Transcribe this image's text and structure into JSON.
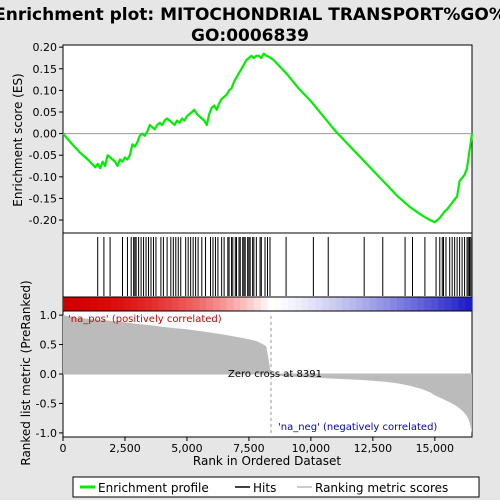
{
  "chart_data": {
    "type": "line",
    "title_line1": "Enrichment plot: MITOCHONDRIAL TRANSPORT%GO%",
    "title_line2": "GO:0006839",
    "top_panel": {
      "ylabel": "Enrichment score (ES)",
      "ylim": [
        -0.23,
        0.205
      ],
      "yticks": [
        "0.20",
        "0.15",
        "0.10",
        "0.05",
        "0.00",
        "-0.05",
        "-0.10",
        "-0.15",
        "-0.20"
      ],
      "ytick_values": [
        0.2,
        0.15,
        0.1,
        0.05,
        0.0,
        -0.05,
        -0.1,
        -0.15,
        -0.2
      ],
      "series_name": "Enrichment profile",
      "color": "#00ee00",
      "x": [
        0,
        300,
        700,
        1000,
        1300,
        1400,
        1500,
        1600,
        1700,
        1800,
        1900,
        2000,
        2100,
        2200,
        2300,
        2400,
        2500,
        2600,
        2700,
        2800,
        2900,
        3000,
        3100,
        3200,
        3300,
        3400,
        3500,
        3600,
        3700,
        3800,
        3900,
        4000,
        4100,
        4200,
        4300,
        4400,
        4500,
        4600,
        4700,
        4800,
        4900,
        5000,
        5100,
        5200,
        5300,
        5400,
        5500,
        5600,
        5700,
        5800,
        5900,
        6000,
        6100,
        6200,
        6300,
        6400,
        6500,
        6600,
        6700,
        6800,
        6900,
        7000,
        7100,
        7200,
        7300,
        7400,
        7500,
        7600,
        7700,
        7800,
        7900,
        8000,
        8100,
        8200,
        8300,
        8500,
        9000,
        9500,
        10000,
        10500,
        11000,
        11500,
        12000,
        12500,
        13000,
        13500,
        14000,
        14500,
        14800,
        15000,
        15200,
        15400,
        15500,
        15700,
        15900,
        16000,
        16200,
        16300,
        16350,
        16400,
        16450,
        16500
      ],
      "y": [
        0.0,
        -0.02,
        -0.045,
        -0.06,
        -0.078,
        -0.07,
        -0.08,
        -0.065,
        -0.075,
        -0.05,
        -0.055,
        -0.06,
        -0.065,
        -0.075,
        -0.06,
        -0.065,
        -0.055,
        -0.06,
        -0.05,
        -0.025,
        -0.03,
        -0.02,
        -0.005,
        0.0,
        -0.005,
        0.005,
        0.02,
        0.015,
        0.01,
        0.02,
        0.025,
        0.02,
        0.03,
        0.035,
        0.03,
        0.025,
        0.02,
        0.03,
        0.025,
        0.035,
        0.03,
        0.04,
        0.045,
        0.05,
        0.055,
        0.045,
        0.04,
        0.035,
        0.03,
        0.02,
        0.045,
        0.06,
        0.065,
        0.055,
        0.07,
        0.08,
        0.085,
        0.09,
        0.1,
        0.105,
        0.12,
        0.13,
        0.14,
        0.15,
        0.16,
        0.17,
        0.175,
        0.18,
        0.175,
        0.18,
        0.18,
        0.175,
        0.185,
        0.18,
        0.178,
        0.17,
        0.14,
        0.105,
        0.075,
        0.04,
        0.005,
        -0.025,
        -0.055,
        -0.085,
        -0.115,
        -0.145,
        -0.17,
        -0.19,
        -0.2,
        -0.205,
        -0.195,
        -0.18,
        -0.175,
        -0.16,
        -0.145,
        -0.11,
        -0.095,
        -0.08,
        -0.06,
        -0.04,
        -0.02,
        0.0
      ],
      "baseline": 0.0
    },
    "hits": {
      "series_name": "Hits",
      "positions": [
        1400,
        1650,
        1900,
        2400,
        2600,
        2750,
        2850,
        2900,
        2950,
        3050,
        3150,
        3250,
        3350,
        3450,
        3550,
        3650,
        3750,
        3950,
        4050,
        4200,
        4350,
        4450,
        4550,
        4650,
        4750,
        4950,
        5050,
        5150,
        5250,
        5350,
        5450,
        5600,
        5750,
        5950,
        6050,
        6150,
        6250,
        6400,
        6500,
        6650,
        6700,
        6800,
        6850,
        6950,
        7000,
        7100,
        7150,
        7250,
        7300,
        7350,
        7450,
        7500,
        7550,
        7650,
        7700,
        7800,
        7950,
        8000,
        8150,
        8250,
        8350,
        9000,
        10100,
        10700,
        12150,
        12900,
        13800,
        14100,
        14600,
        15050,
        15200,
        15300,
        15350,
        15450,
        15600,
        15700,
        15800,
        15900,
        16000,
        16100,
        16200,
        16300,
        16350,
        16400,
        16450
      ]
    },
    "metric_panel": {
      "ylabel": "Ranked list metric (PreRanked)",
      "series_name": "Ranking metric scores",
      "ylim": [
        -1.07,
        1.07
      ],
      "yticks": [
        "1.0",
        "0.5",
        "0.0",
        "-0.5",
        "-1.0"
      ],
      "ytick_values": [
        1.0,
        0.5,
        0.0,
        -0.5,
        -1.0
      ],
      "x": [
        0,
        250,
        500,
        1000,
        1500,
        2000,
        2500,
        3000,
        3500,
        4000,
        4500,
        5000,
        5500,
        6000,
        6500,
        7000,
        7500,
        7800,
        8000,
        8200,
        8391,
        8400,
        9000,
        10000,
        11000,
        12000,
        13000,
        13500,
        14000,
        14500,
        14800,
        15000,
        15300,
        15600,
        15900,
        16100,
        16250,
        16350,
        16400,
        16450,
        16500
      ],
      "y": [
        1.0,
        0.98,
        0.96,
        0.94,
        0.92,
        0.9,
        0.88,
        0.85,
        0.83,
        0.8,
        0.78,
        0.76,
        0.73,
        0.7,
        0.67,
        0.63,
        0.59,
        0.56,
        0.52,
        0.47,
        0.0,
        -0.02,
        -0.04,
        -0.06,
        -0.08,
        -0.1,
        -0.13,
        -0.16,
        -0.2,
        -0.26,
        -0.31,
        -0.36,
        -0.42,
        -0.48,
        -0.55,
        -0.62,
        -0.69,
        -0.76,
        -0.82,
        -0.9,
        -1.0
      ],
      "zero_cross_label": "Zero cross at 8391",
      "zero_cross": 8391,
      "pos_label": "'na_pos' (positively correlated)",
      "neg_label": "'na_neg' (negatively correlated)"
    },
    "xaxis": {
      "label": "Rank in Ordered Dataset",
      "xlim": [
        0,
        16500
      ],
      "ticks": [
        "0",
        "2,500",
        "5,000",
        "7,500",
        "10,000",
        "12,500",
        "15,000"
      ],
      "tick_values": [
        0,
        2500,
        5000,
        7500,
        10000,
        12500,
        15000
      ]
    },
    "legend": {
      "placement": "bottom",
      "items": [
        {
          "label": "Enrichment profile",
          "color": "#00ee00"
        },
        {
          "label": "Hits",
          "color": "#000000"
        },
        {
          "label": "Ranking metric scores",
          "color": "#bbbbbb"
        }
      ]
    },
    "colors": {
      "pos_label": "#cc0000",
      "neg_label": "#0000cc",
      "metric_fill": "#bbbbbb"
    }
  }
}
